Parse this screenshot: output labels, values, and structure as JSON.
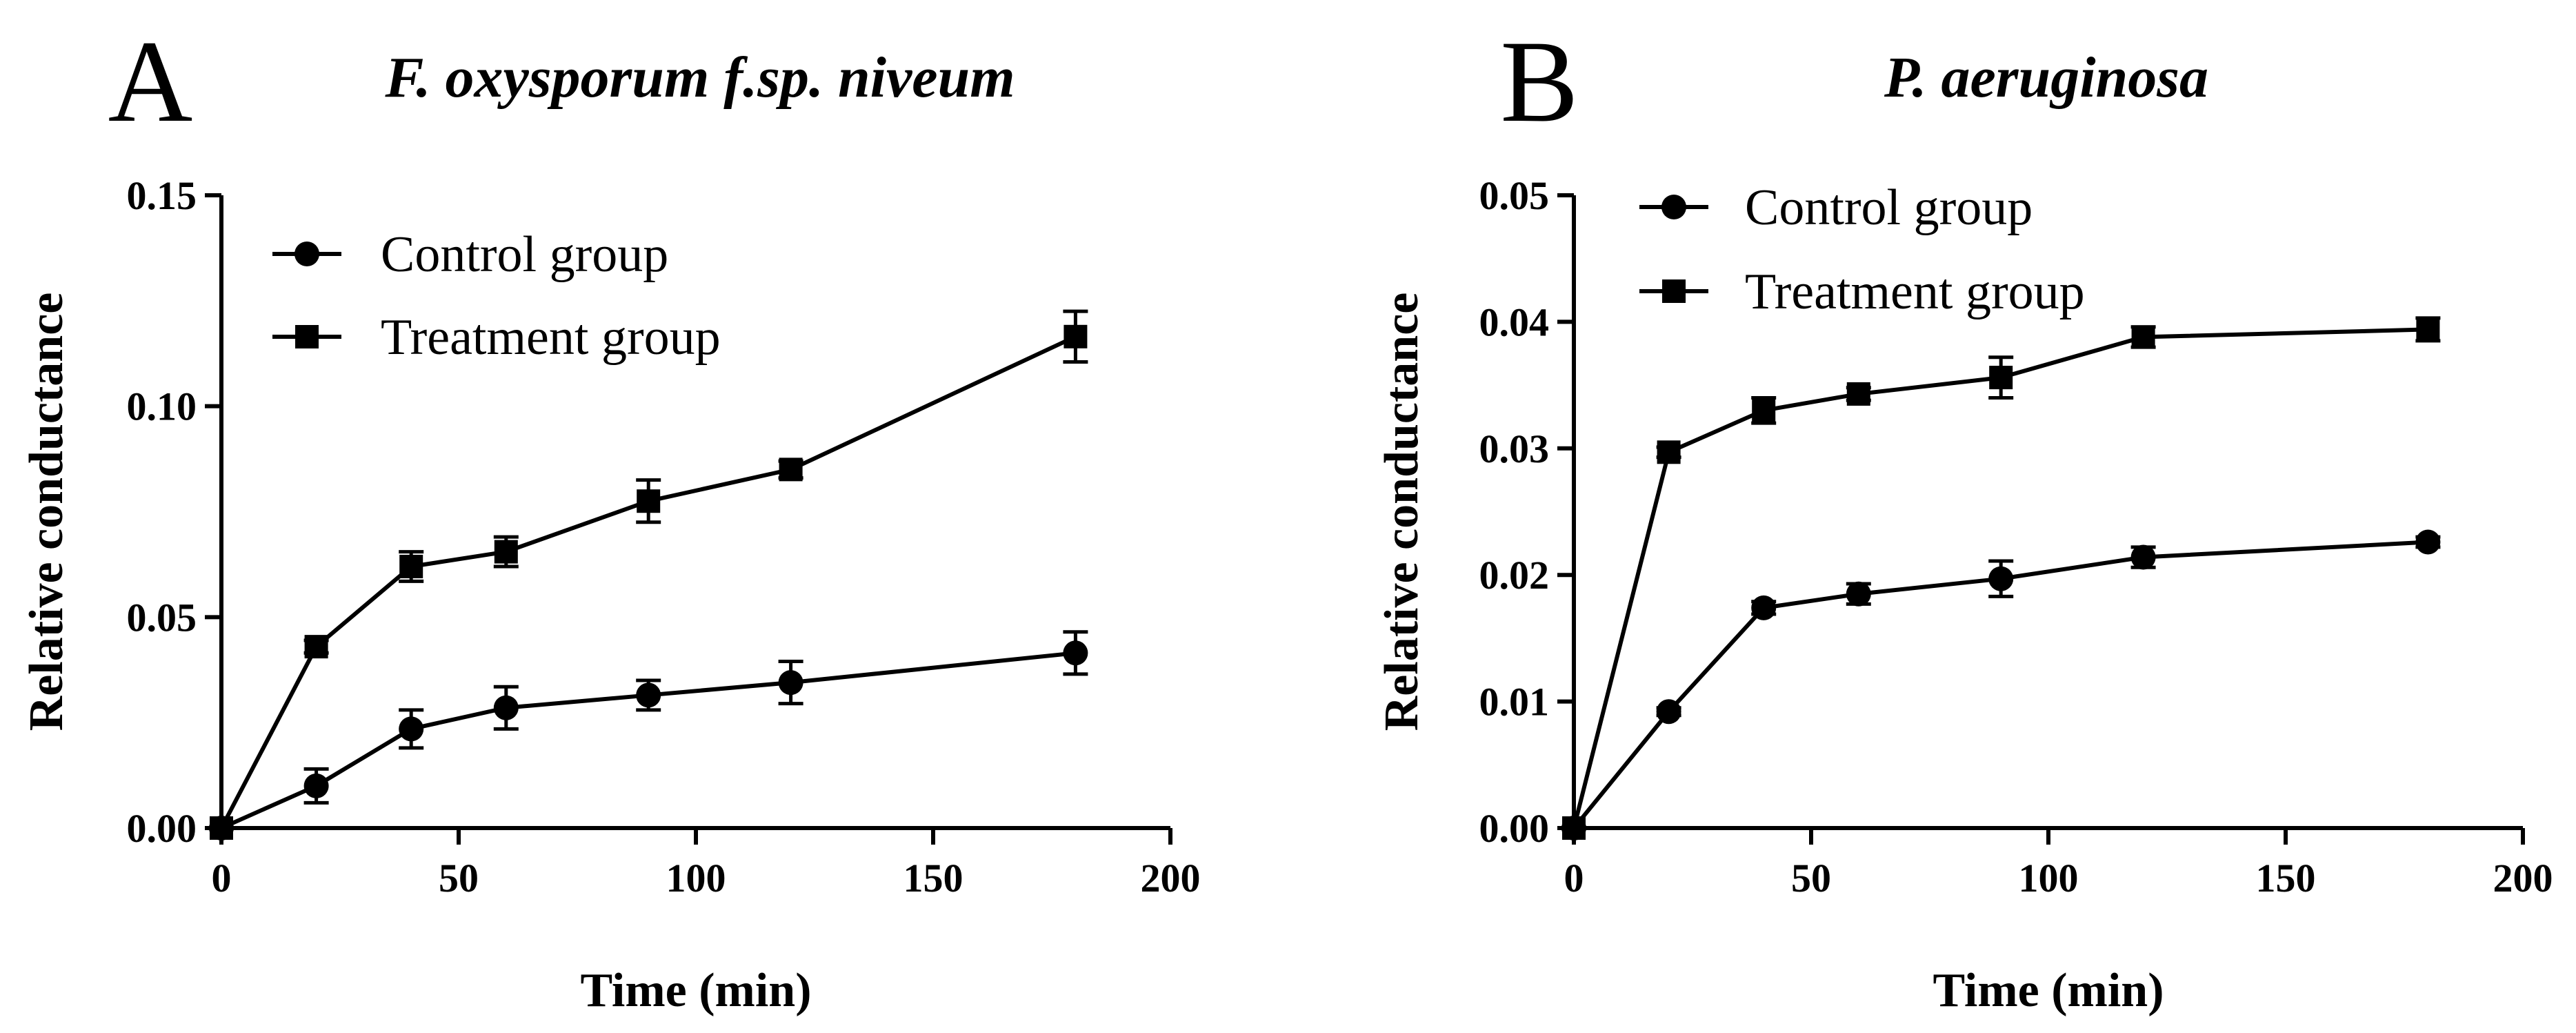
{
  "chart_data": [
    {
      "type": "line",
      "panel_label": "A",
      "title": "F. oxysporum f.sp. niveum",
      "xlabel": "Time (min)",
      "ylabel": "Relative conductance",
      "xlim": [
        0,
        200
      ],
      "ylim": [
        0,
        0.15
      ],
      "xticks": [
        0,
        50,
        100,
        150,
        200
      ],
      "xtick_labels": [
        "0",
        "50",
        "100",
        "150",
        "200"
      ],
      "yticks": [
        0,
        0.05,
        0.1,
        0.15
      ],
      "ytick_labels": [
        "0.00",
        "0.05",
        "0.10",
        "0.15"
      ],
      "legend_position": "top-left",
      "x": [
        0,
        20,
        40,
        60,
        90,
        120,
        180
      ],
      "series": [
        {
          "name": "Control group",
          "marker": "circle",
          "values": [
            0,
            0.01,
            0.0235,
            0.0285,
            0.0315,
            0.0345,
            0.0415
          ],
          "errors": [
            0,
            0.004,
            0.0045,
            0.005,
            0.0035,
            0.005,
            0.005
          ]
        },
        {
          "name": "Treatment group",
          "marker": "square",
          "values": [
            0,
            0.043,
            0.062,
            0.0655,
            0.0775,
            0.085,
            0.1165
          ],
          "errors": [
            0,
            0.0015,
            0.0035,
            0.0035,
            0.005,
            0.002,
            0.006
          ]
        }
      ]
    },
    {
      "type": "line",
      "panel_label": "B",
      "title": "P. aeruginosa",
      "xlabel": "Time (min)",
      "ylabel": "Relative conductance",
      "xlim": [
        0,
        200
      ],
      "ylim": [
        0,
        0.05
      ],
      "xticks": [
        0,
        50,
        100,
        150,
        200
      ],
      "xtick_labels": [
        "0",
        "50",
        "100",
        "150",
        "200"
      ],
      "yticks": [
        0,
        0.01,
        0.02,
        0.03,
        0.04,
        0.05
      ],
      "ytick_labels": [
        "0.00",
        "0.01",
        "0.02",
        "0.03",
        "0.04",
        "0.05"
      ],
      "legend_position": "top-left",
      "x": [
        0,
        20,
        40,
        60,
        90,
        120,
        180
      ],
      "series": [
        {
          "name": "Control group",
          "marker": "circle",
          "values": [
            0,
            0.0092,
            0.0174,
            0.0185,
            0.0197,
            0.0214,
            0.0226
          ],
          "errors": [
            0,
            0.0003,
            0.0005,
            0.0008,
            0.0014,
            0.0008,
            0.0004
          ]
        },
        {
          "name": "Treatment group",
          "marker": "square",
          "values": [
            0,
            0.0297,
            0.033,
            0.0343,
            0.0356,
            0.0388,
            0.0394
          ],
          "errors": [
            0,
            0.0004,
            0.001,
            0.0005,
            0.0016,
            0.0008,
            0.0009
          ]
        }
      ]
    }
  ]
}
